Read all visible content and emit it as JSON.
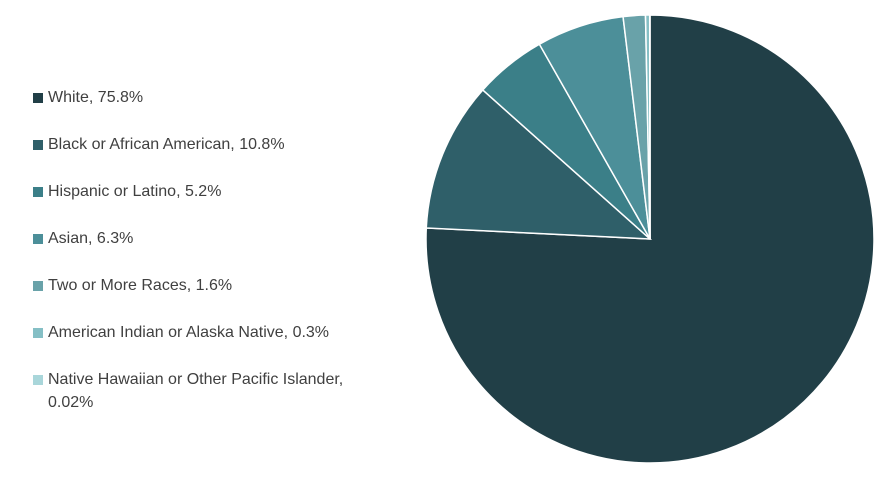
{
  "chart_data": {
    "type": "pie",
    "categories": [
      "White, 75.8%",
      "Black or African American, 10.8%",
      "Hispanic or Latino, 5.2%",
      "Asian, 6.3%",
      "Two or More Races, 1.6%",
      "American Indian or Alaska Native, 0.3%",
      "Native Hawaiian or Other Pacific Islander, 0.02%"
    ],
    "values": [
      75.8,
      10.8,
      5.2,
      6.3,
      1.6,
      0.3,
      0.02
    ],
    "colors": [
      "#213f47",
      "#2f5f69",
      "#3b7f88",
      "#4c8f99",
      "#69a2a9",
      "#85bfc5",
      "#a9d6da"
    ],
    "legend": "left"
  }
}
